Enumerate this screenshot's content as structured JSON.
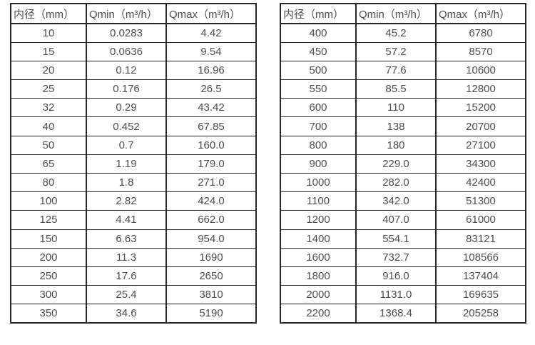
{
  "colors": {
    "background": "#ffffff",
    "border": "#262626",
    "text": "#4d4d4d"
  },
  "chart_data": [
    {
      "type": "table",
      "title": "",
      "headers": [
        "内径（mm）",
        "Qmin（m³/h）",
        "Qmax（m³/h）"
      ],
      "rows": [
        [
          "10",
          "0.0283",
          "4.42"
        ],
        [
          "15",
          "0.0636",
          "9.54"
        ],
        [
          "20",
          "0.12",
          "16.96"
        ],
        [
          "25",
          "0.176",
          "26.5"
        ],
        [
          "32",
          "0.29",
          "43.42"
        ],
        [
          "40",
          "0.452",
          "67.85"
        ],
        [
          "50",
          "0.7",
          "160.0"
        ],
        [
          "65",
          "1.19",
          "179.0"
        ],
        [
          "80",
          "1.8",
          "271.0"
        ],
        [
          "100",
          "2.82",
          "424.0"
        ],
        [
          "125",
          "4.41",
          "662.0"
        ],
        [
          "150",
          "6.63",
          "954.0"
        ],
        [
          "200",
          "11.3",
          "1690"
        ],
        [
          "250",
          "17.6",
          "2650"
        ],
        [
          "300",
          "25.4",
          "3810"
        ],
        [
          "350",
          "34.6",
          "5190"
        ]
      ]
    },
    {
      "type": "table",
      "title": "",
      "headers": [
        "内径（mm）",
        "Qmin（m³/h）",
        "Qmax（m³/h）"
      ],
      "rows": [
        [
          "400",
          "45.2",
          "6780"
        ],
        [
          "450",
          "57.2",
          "8570"
        ],
        [
          "500",
          "77.6",
          "10600"
        ],
        [
          "550",
          "85.5",
          "12800"
        ],
        [
          "600",
          "110",
          "15200"
        ],
        [
          "700",
          "138",
          "20700"
        ],
        [
          "800",
          "180",
          "27100"
        ],
        [
          "900",
          "229.0",
          "34300"
        ],
        [
          "1000",
          "282.0",
          "42400"
        ],
        [
          "1100",
          "342.0",
          "51300"
        ],
        [
          "1200",
          "407.0",
          "61000"
        ],
        [
          "1400",
          "554.1",
          "83121"
        ],
        [
          "1600",
          "732.7",
          "108566"
        ],
        [
          "1800",
          "916.0",
          "137404"
        ],
        [
          "2000",
          "1131.0",
          "169635"
        ],
        [
          "2200",
          "1368.4",
          "205258"
        ]
      ]
    }
  ]
}
